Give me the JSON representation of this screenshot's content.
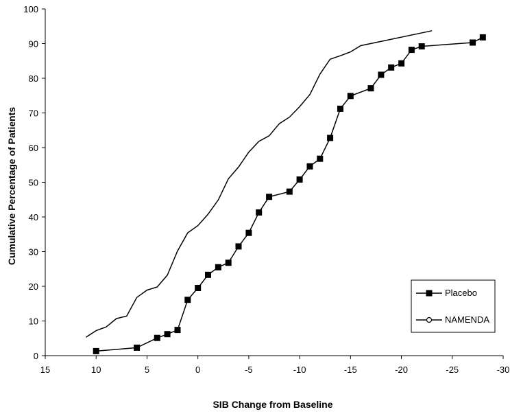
{
  "chart_data": {
    "type": "line",
    "title": "",
    "xlabel": "SIB Change from Baseline",
    "ylabel": "Cumulative Percentage of Patients",
    "xlim": [
      15,
      -30
    ],
    "ylim": [
      0,
      100
    ],
    "x_ticks": [
      15,
      10,
      5,
      0,
      -5,
      -10,
      -15,
      -20,
      -25,
      -30
    ],
    "y_ticks": [
      0,
      10,
      20,
      30,
      40,
      50,
      60,
      70,
      80,
      90,
      100
    ],
    "x_tick_labels": [
      "15",
      "10",
      "5",
      "0",
      "-5",
      "-10",
      "-15",
      "-20",
      "-25",
      "-30"
    ],
    "y_tick_labels": [
      "0",
      "10",
      "20",
      "30",
      "40",
      "50",
      "60",
      "70",
      "80",
      "90",
      "100"
    ],
    "grid": false,
    "legend_position": "bottom-right",
    "series": [
      {
        "name": "Placebo",
        "marker": "filled-square",
        "color": "#000000",
        "x": [
          10,
          6,
          4,
          3,
          2,
          1,
          0,
          -1,
          -2,
          -3,
          -4,
          -5,
          -6,
          -7,
          -9,
          -10,
          -11,
          -12,
          -13,
          -14,
          -15,
          -17,
          -18,
          -19,
          -20,
          -21,
          -22,
          -27,
          -28
        ],
        "y": [
          1.3,
          2.3,
          5.1,
          6.2,
          7.4,
          16.1,
          19.5,
          23.3,
          25.5,
          26.8,
          31.5,
          35.4,
          41.3,
          45.8,
          47.3,
          50.8,
          54.6,
          56.8,
          62.8,
          71.2,
          74.9,
          77.1,
          81.0,
          83.1,
          84.3,
          88.2,
          89.2,
          90.3,
          91.8
        ]
      },
      {
        "name": "NAMENDA",
        "marker": "none",
        "color": "#000000",
        "x": [
          11,
          10,
          9,
          8,
          7,
          6,
          5,
          4,
          3,
          2,
          1,
          0,
          -1,
          -2,
          -3,
          -4,
          -5,
          -6,
          -7,
          -8,
          -9,
          -10,
          -11,
          -12,
          -13,
          -14,
          -15,
          -16,
          -23
        ],
        "y": [
          5.3,
          7.2,
          8.3,
          10.7,
          11.4,
          16.8,
          18.9,
          19.8,
          23.2,
          30.2,
          35.4,
          37.5,
          40.8,
          44.9,
          51.0,
          54.4,
          58.7,
          61.8,
          63.4,
          66.9,
          68.8,
          71.8,
          75.3,
          81.2,
          85.5,
          86.5,
          87.6,
          89.4,
          93.7
        ]
      }
    ]
  }
}
